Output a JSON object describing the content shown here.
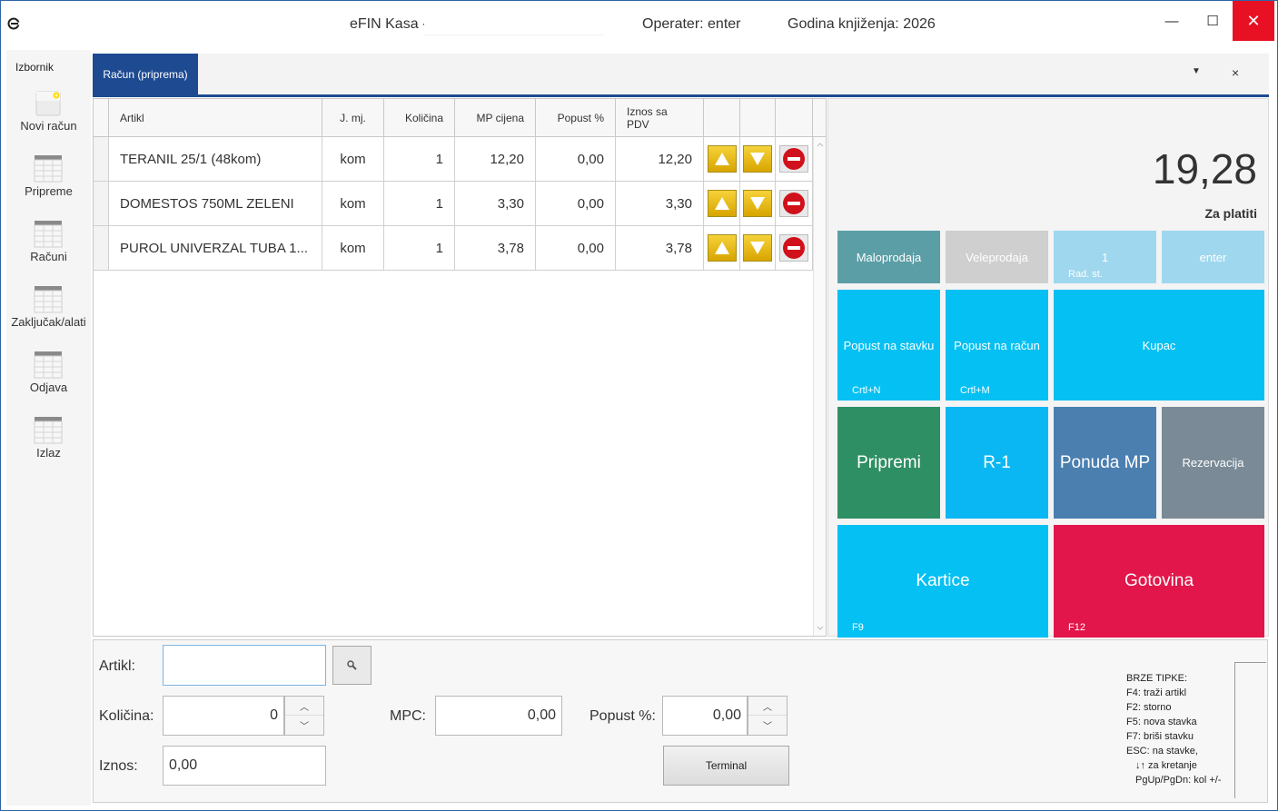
{
  "titlebar": {
    "app_title": "eFIN Kasa -",
    "operator": "Operater: enter",
    "year": "Godina knjiženja: 2026",
    "minimize": "—",
    "maximize": "☐",
    "close": "✕"
  },
  "sidebar": {
    "title": "Izbornik",
    "items": [
      {
        "label": "Novi račun",
        "icon": "new-document-icon"
      },
      {
        "label": "Pripreme",
        "icon": "table-icon"
      },
      {
        "label": "Računi",
        "icon": "table-icon"
      },
      {
        "label": "Zaključak/alati",
        "icon": "table-icon"
      },
      {
        "label": "Odjava",
        "icon": "table-icon"
      },
      {
        "label": "Izlaz",
        "icon": "table-icon"
      }
    ]
  },
  "tabs": {
    "active_label": "Račun (priprema)",
    "dropdown": "▼",
    "close": "×"
  },
  "grid": {
    "columns": [
      "Artikl",
      "J. mj.",
      "Količina",
      "MP cijena",
      "Popust %",
      "Iznos sa PDV"
    ],
    "rows": [
      {
        "artikl": "TERANIL 25/1 (48kom)",
        "jmj": "kom",
        "kolicina": "1",
        "mp_cijena": "12,20",
        "popust": "0,00",
        "iznos": "12,20"
      },
      {
        "artikl": "DOMESTOS 750ML ZELENI",
        "jmj": "kom",
        "kolicina": "1",
        "mp_cijena": "3,30",
        "popust": "0,00",
        "iznos": "3,30"
      },
      {
        "artikl": "PUROL UNIVERZAL TUBA 1...",
        "jmj": "kom",
        "kolicina": "1",
        "mp_cijena": "3,78",
        "popust": "0,00",
        "iznos": "3,78"
      }
    ]
  },
  "summary": {
    "total": "19,28",
    "total_label": "Za platiti"
  },
  "tiles": {
    "maloprodaja": "Maloprodaja",
    "veleprodaja": "Veleprodaja",
    "rad_st_value": "1",
    "rad_st_label": "Rad. st.",
    "operator": "enter",
    "popust_stavka": "Popust na stavku",
    "popust_stavka_key": "Crtl+N",
    "popust_racun": "Popust na račun",
    "popust_racun_key": "Crtl+M",
    "kupac": "Kupac",
    "pripremi": "Pripremi",
    "r1": "R-1",
    "ponuda": "Ponuda MP",
    "rezervacija": "Rezervacija",
    "kartice": "Kartice",
    "kartice_key": "F9",
    "gotovina": "Gotovina",
    "gotovina_key": "F12"
  },
  "colors": {
    "accent": "#1e4a92",
    "maloprodaja": "#5b9ea6",
    "veleprodaja": "#cfcfcf",
    "light_blue": "#9fd7ee",
    "cyan": "#04c0f3",
    "cyan2": "#0bb7f2",
    "green": "#2f8f64",
    "steel": "#4a7fb0",
    "grey": "#7a8a96",
    "red": "#e2164a",
    "close": "#e81123"
  },
  "form": {
    "artikl_label": "Artikl:",
    "artikl_value": "",
    "kolicina_label": "Količina:",
    "kolicina_value": "0",
    "mpc_label": "MPC:",
    "mpc_value": "0,00",
    "popust_label": "Popust %:",
    "popust_value": "0,00",
    "iznos_label": "Iznos:",
    "iznos_value": "0,00",
    "terminal_label": "Terminal"
  },
  "hotkeys": [
    "BRZE TIPKE:",
    "F4: traži artikl",
    "F2: storno",
    "F5: nova stavka",
    "F7: briši stavku",
    "ESC: na stavke,",
    "↓↑ za kretanje",
    "PgUp/PgDn: kol +/-"
  ]
}
